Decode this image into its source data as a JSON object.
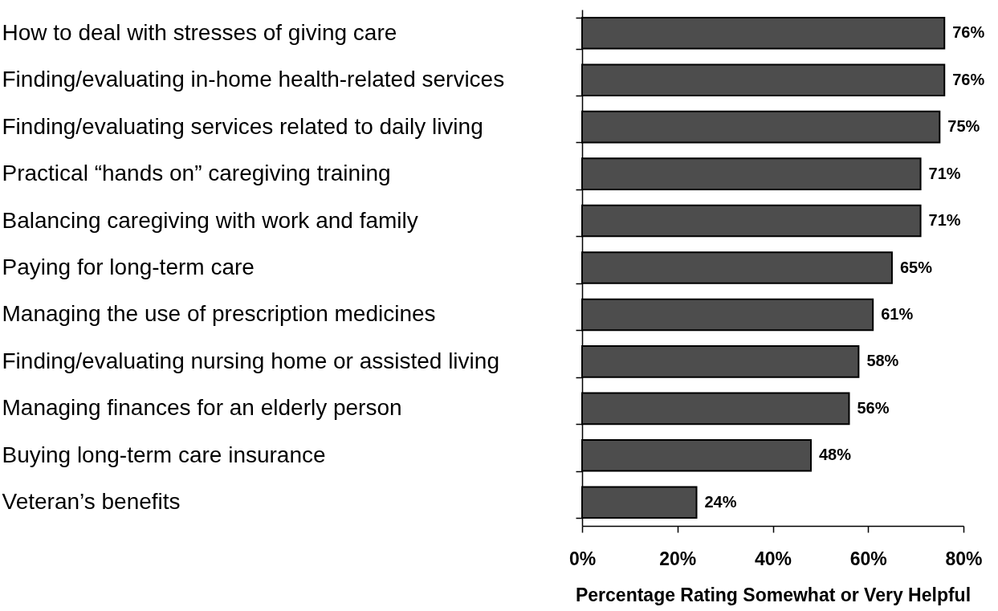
{
  "chart_data": {
    "type": "bar",
    "orientation": "horizontal",
    "xlabel": "Percentage Rating Somewhat or Very Helpful",
    "categories": [
      "How to deal with stresses of giving care",
      "Finding/evaluating in-home health-related services",
      "Finding/evaluating services related to daily living",
      "Practical “hands on” caregiving training",
      "Balancing caregiving with work and family",
      "Paying for long-term care",
      "Managing the use of prescription medicines",
      "Finding/evaluating nursing home or assisted living",
      "Managing finances for an elderly person",
      "Buying long-term care insurance",
      "Veteran’s benefits"
    ],
    "values": [
      76,
      76,
      75,
      71,
      71,
      65,
      61,
      58,
      56,
      48,
      24
    ],
    "value_labels": [
      "76%",
      "76%",
      "75%",
      "71%",
      "71%",
      "65%",
      "61%",
      "58%",
      "56%",
      "48%",
      "24%"
    ],
    "color": "#4d4d4d",
    "xlim": [
      0,
      80
    ],
    "xticks": [
      {
        "value": 0,
        "label": "0%"
      },
      {
        "value": 20,
        "label": "20%"
      },
      {
        "value": 40,
        "label": "40%"
      },
      {
        "value": 60,
        "label": "60%"
      },
      {
        "value": 80,
        "label": "80%"
      }
    ],
    "grid": false
  }
}
